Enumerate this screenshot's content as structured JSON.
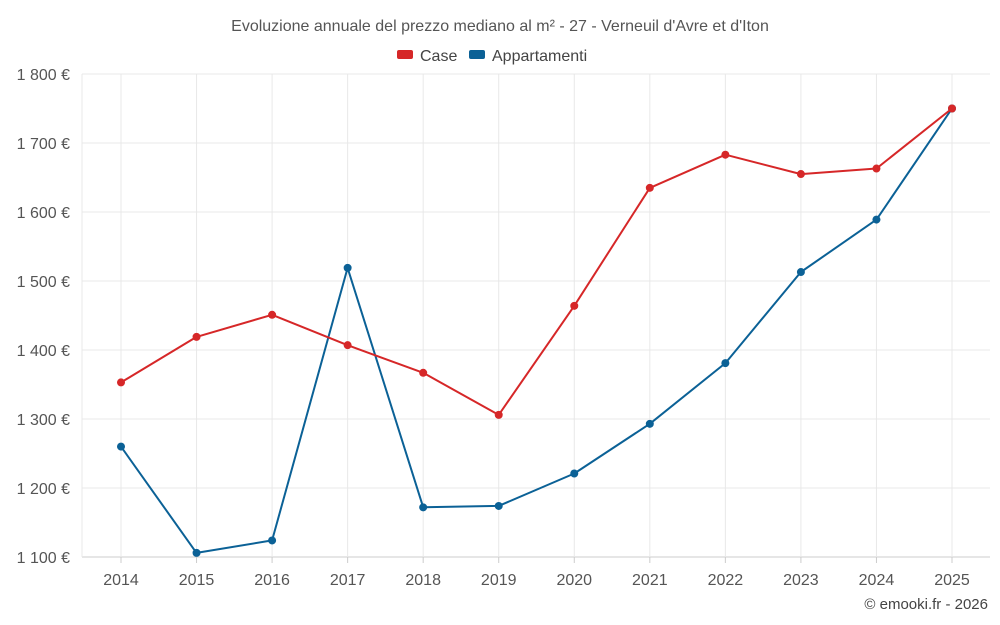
{
  "chart_data": {
    "type": "line",
    "title": "Evoluzione annuale del prezzo mediano al m² - 27 - Verneuil d'Avre et d'Iton",
    "categories": [
      "2014",
      "2015",
      "2016",
      "2017",
      "2018",
      "2019",
      "2020",
      "2021",
      "2022",
      "2023",
      "2024",
      "2025"
    ],
    "series": [
      {
        "name": "Case",
        "color": "#d62728",
        "values": [
          1353,
          1419,
          1451,
          1407,
          1367,
          1306,
          1464,
          1635,
          1683,
          1655,
          1663,
          1750
        ]
      },
      {
        "name": "Appartamenti",
        "color": "#0b6196",
        "values": [
          1260,
          1106,
          1124,
          1519,
          1172,
          1174,
          1221,
          1293,
          1381,
          1513,
          1589,
          1750
        ]
      }
    ],
    "ylim": [
      1100,
      1800
    ],
    "yticks": [
      1100,
      1200,
      1300,
      1400,
      1500,
      1600,
      1700,
      1800
    ],
    "ytick_labels": [
      "1 100 €",
      "1 200 €",
      "1 300 €",
      "1 400 €",
      "1 500 €",
      "1 600 €",
      "1 700 €",
      "1 800 €"
    ],
    "xlabel": "",
    "ylabel": "",
    "grid": true,
    "legend": "top-center"
  },
  "credit": "© emooki.fr - 2026"
}
